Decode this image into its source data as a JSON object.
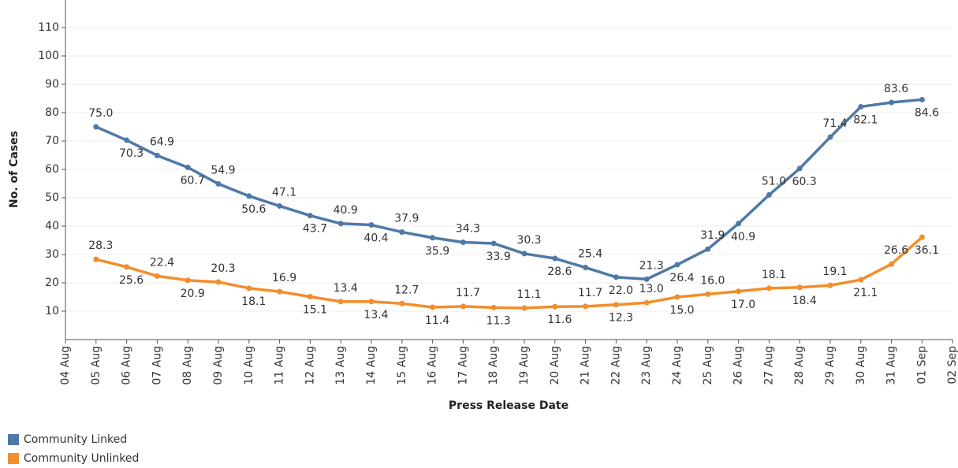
{
  "chart_data": {
    "type": "line",
    "y_label": "No. of Cases",
    "x_label": "Press Release Date",
    "categories": [
      "04 Aug",
      "05 Aug",
      "06 Aug",
      "07 Aug",
      "08 Aug",
      "09 Aug",
      "10 Aug",
      "11 Aug",
      "12 Aug",
      "13 Aug",
      "14 Aug",
      "15 Aug",
      "16 Aug",
      "17 Aug",
      "18 Aug",
      "19 Aug",
      "20 Aug",
      "21 Aug",
      "22 Aug",
      "23 Aug",
      "24 Aug",
      "25 Aug",
      "26 Aug",
      "27 Aug",
      "28 Aug",
      "29 Aug",
      "30 Aug",
      "31 Aug",
      "01 Sep",
      "02 Sep"
    ],
    "series": [
      {
        "name": "Community Linked",
        "color": "#4e79a7",
        "values": [
          null,
          75.0,
          70.3,
          64.9,
          60.7,
          54.9,
          50.6,
          47.1,
          43.7,
          40.9,
          40.4,
          37.9,
          35.9,
          34.3,
          33.9,
          30.3,
          28.6,
          25.4,
          22.0,
          21.3,
          26.4,
          31.9,
          40.9,
          51.0,
          60.3,
          71.4,
          82.1,
          83.6,
          84.6,
          null
        ],
        "value_labels": [
          null,
          "75.0",
          "70.3",
          "64.9",
          "60.7",
          "54.9",
          "50.6",
          "47.1",
          "43.7",
          "40.9",
          "40.4",
          "37.9",
          "35.9",
          "34.3",
          "33.9",
          "30.3",
          "28.6",
          "25.4",
          "22.0",
          "21.3",
          "26.4",
          "31.9",
          "40.9",
          "51.0",
          "60.3",
          "71.4",
          "82.1",
          "83.6",
          "84.6",
          null
        ]
      },
      {
        "name": "Community Unlinked",
        "color": "#f28e2b",
        "values": [
          null,
          28.3,
          25.6,
          22.4,
          20.9,
          20.3,
          18.1,
          16.9,
          15.1,
          13.4,
          13.4,
          12.7,
          11.4,
          11.7,
          11.3,
          11.1,
          11.6,
          11.7,
          12.3,
          13.0,
          15.0,
          16.0,
          17.0,
          18.1,
          18.4,
          19.1,
          21.1,
          26.6,
          36.1,
          null
        ],
        "value_labels": [
          null,
          "28.3",
          "25.6",
          "22.4",
          "20.9",
          "20.3",
          "18.1",
          "16.9",
          "15.1",
          "13.4",
          "13.4",
          "12.7",
          "11.4",
          "11.7",
          "11.3",
          "11.1",
          "11.6",
          "11.7",
          "12.3",
          "13.0",
          "15.0",
          "16.0",
          "17.0",
          "18.1",
          "18.4",
          "19.1",
          "21.1",
          "26.6",
          "36.1",
          null
        ]
      }
    ],
    "ylim": [
      0,
      120
    ],
    "yticks": [
      10,
      20,
      30,
      40,
      50,
      60,
      70,
      80,
      90,
      100,
      110
    ],
    "grid": true,
    "legend": "bottom-left"
  }
}
